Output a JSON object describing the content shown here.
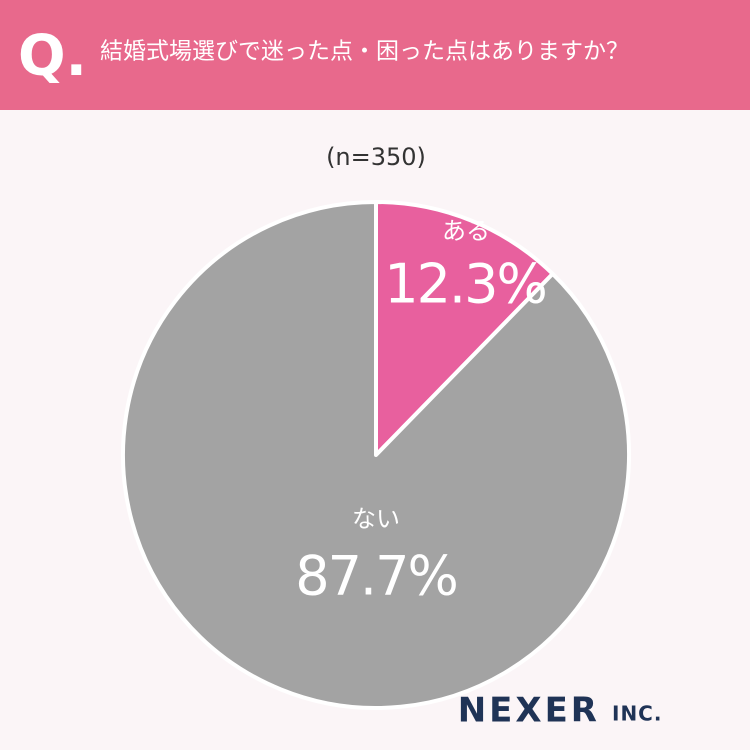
{
  "chart_data": {
    "type": "pie",
    "question_mark": "Q.",
    "title": "結婚式場選びで迷った点・困った点はありますか？",
    "subtitle": "(n=350)",
    "categories": [
      "ある",
      "ない"
    ],
    "values": [
      12.3,
      87.7
    ],
    "value_labels": [
      "12.3%",
      "87.7%"
    ],
    "colors": [
      "#e8609e",
      "#a3a3a3"
    ],
    "brand": {
      "name": "NEXER",
      "suffix": "INC."
    }
  }
}
